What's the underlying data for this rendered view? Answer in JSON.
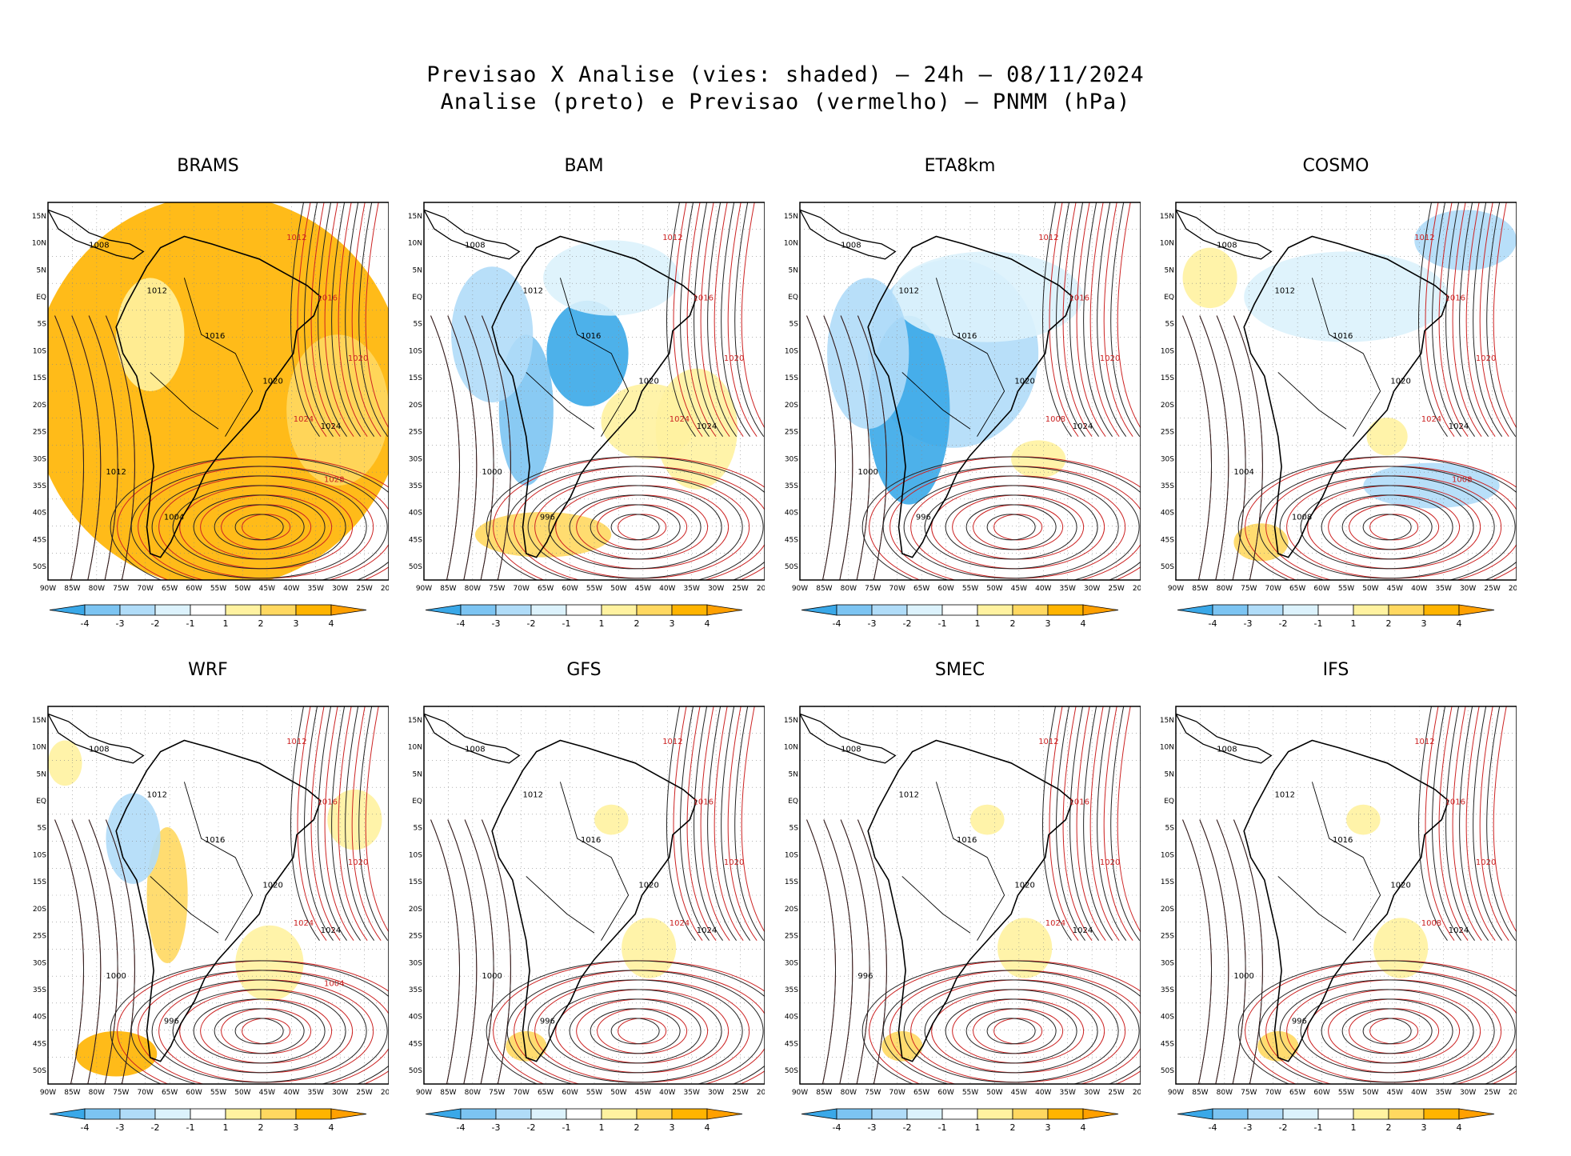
{
  "title_line1": "Previsao X Analise (vies: shaded) – 24h – 08/11/2024",
  "title_line2": "Analise (preto) e Previsao (vermelho) – PNMM (hPa)",
  "lat_ticks": [
    "15N",
    "10N",
    "5N",
    "EQ",
    "5S",
    "10S",
    "15S",
    "20S",
    "25S",
    "30S",
    "35S",
    "40S",
    "45S",
    "50S"
  ],
  "lon_ticks": [
    "90W",
    "85W",
    "80W",
    "75W",
    "70W",
    "65W",
    "60W",
    "55W",
    "50W",
    "45W",
    "40W",
    "35W",
    "30W",
    "25W",
    "20W"
  ],
  "colorbar": {
    "labels": [
      "-4",
      "-3",
      "-2",
      "-1",
      "1",
      "2",
      "3",
      "4"
    ],
    "colors": [
      "#3aa8e8",
      "#7cc4f2",
      "#b0dcf8",
      "#dcf2fc",
      "#ffffff",
      "#fff2a0",
      "#ffd860",
      "#ffb400",
      "#ffa000"
    ]
  },
  "panels": [
    {
      "name": "BRAMS",
      "bias": "warm-strong",
      "isobars_black": [
        "1008",
        "1012",
        "1016",
        "1020",
        "1024",
        "1012",
        "1004"
      ],
      "isobars_red": [
        "1012",
        "1016",
        "1020",
        "1024",
        "1028"
      ]
    },
    {
      "name": "BAM",
      "bias": "cool",
      "isobars_black": [
        "1008",
        "1012",
        "1016",
        "1020",
        "1024",
        "1000",
        "996"
      ],
      "isobars_red": [
        "1012",
        "1016",
        "1020",
        "1024"
      ]
    },
    {
      "name": "ETA8km",
      "bias": "cool-strong",
      "isobars_black": [
        "1008",
        "1012",
        "1016",
        "1020",
        "1024",
        "1000",
        "996"
      ],
      "isobars_red": [
        "1012",
        "1016",
        "1020",
        "1008"
      ]
    },
    {
      "name": "COSMO",
      "bias": "cool-light",
      "isobars_black": [
        "1008",
        "1012",
        "1016",
        "1020",
        "1024",
        "1004",
        "1008"
      ],
      "isobars_red": [
        "1012",
        "1016",
        "1020",
        "1024",
        "1008"
      ]
    },
    {
      "name": "WRF",
      "bias": "mixed",
      "isobars_black": [
        "1008",
        "1012",
        "1016",
        "1020",
        "1024",
        "1000",
        "996"
      ],
      "isobars_red": [
        "1012",
        "1016",
        "1020",
        "1024",
        "1004"
      ]
    },
    {
      "name": "GFS",
      "bias": "neutral",
      "isobars_black": [
        "1008",
        "1012",
        "1016",
        "1020",
        "1024",
        "1000",
        "996"
      ],
      "isobars_red": [
        "1012",
        "1016",
        "1020",
        "1024"
      ]
    },
    {
      "name": "SMEC",
      "bias": "neutral",
      "isobars_black": [
        "1008",
        "1012",
        "1016",
        "1020",
        "1024",
        "996"
      ],
      "isobars_red": [
        "1012",
        "1016",
        "1020",
        "1024"
      ]
    },
    {
      "name": "IFS",
      "bias": "neutral",
      "isobars_black": [
        "1008",
        "1012",
        "1016",
        "1020",
        "1024",
        "1000",
        "996"
      ],
      "isobars_red": [
        "1012",
        "1016",
        "1020",
        "1008"
      ]
    }
  ]
}
